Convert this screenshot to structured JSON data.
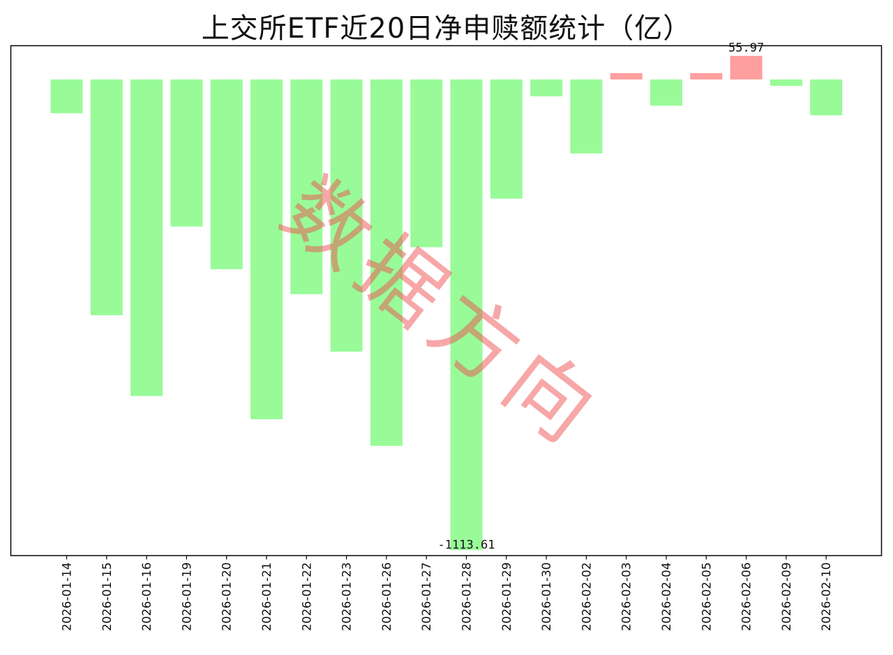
{
  "title": "上交所ETF近20日净申赎额统计（亿）",
  "watermark": "数据方向",
  "colors": {
    "negative": "#98fb98",
    "positive": "#ff9e9e",
    "axis": "#000000"
  },
  "chart_data": {
    "type": "bar",
    "title": "上交所ETF近20日净申赎额统计（亿）",
    "xlabel": "",
    "ylabel": "",
    "categories": [
      "2026-01-14",
      "2026-01-15",
      "2026-01-16",
      "2026-01-19",
      "2026-01-20",
      "2026-01-21",
      "2026-01-22",
      "2026-01-23",
      "2026-01-26",
      "2026-01-27",
      "2026-01-28",
      "2026-01-29",
      "2026-01-30",
      "2026-02-02",
      "2026-02-03",
      "2026-02-04",
      "2026-02-05",
      "2026-02-06",
      "2026-02-09",
      "2026-02-10"
    ],
    "values": [
      -80,
      -558,
      -749,
      -348,
      -449,
      -804,
      -508,
      -644,
      -867,
      -397,
      -1113.61,
      -282,
      -40,
      -175,
      15,
      -62,
      15,
      55.97,
      -15,
      -85
    ],
    "ylim": [
      -1126,
      79
    ],
    "grid": false,
    "annotations": [
      {
        "category": "2026-01-28",
        "text": "-1113.61"
      },
      {
        "category": "2026-02-06",
        "text": "55.97"
      }
    ]
  }
}
